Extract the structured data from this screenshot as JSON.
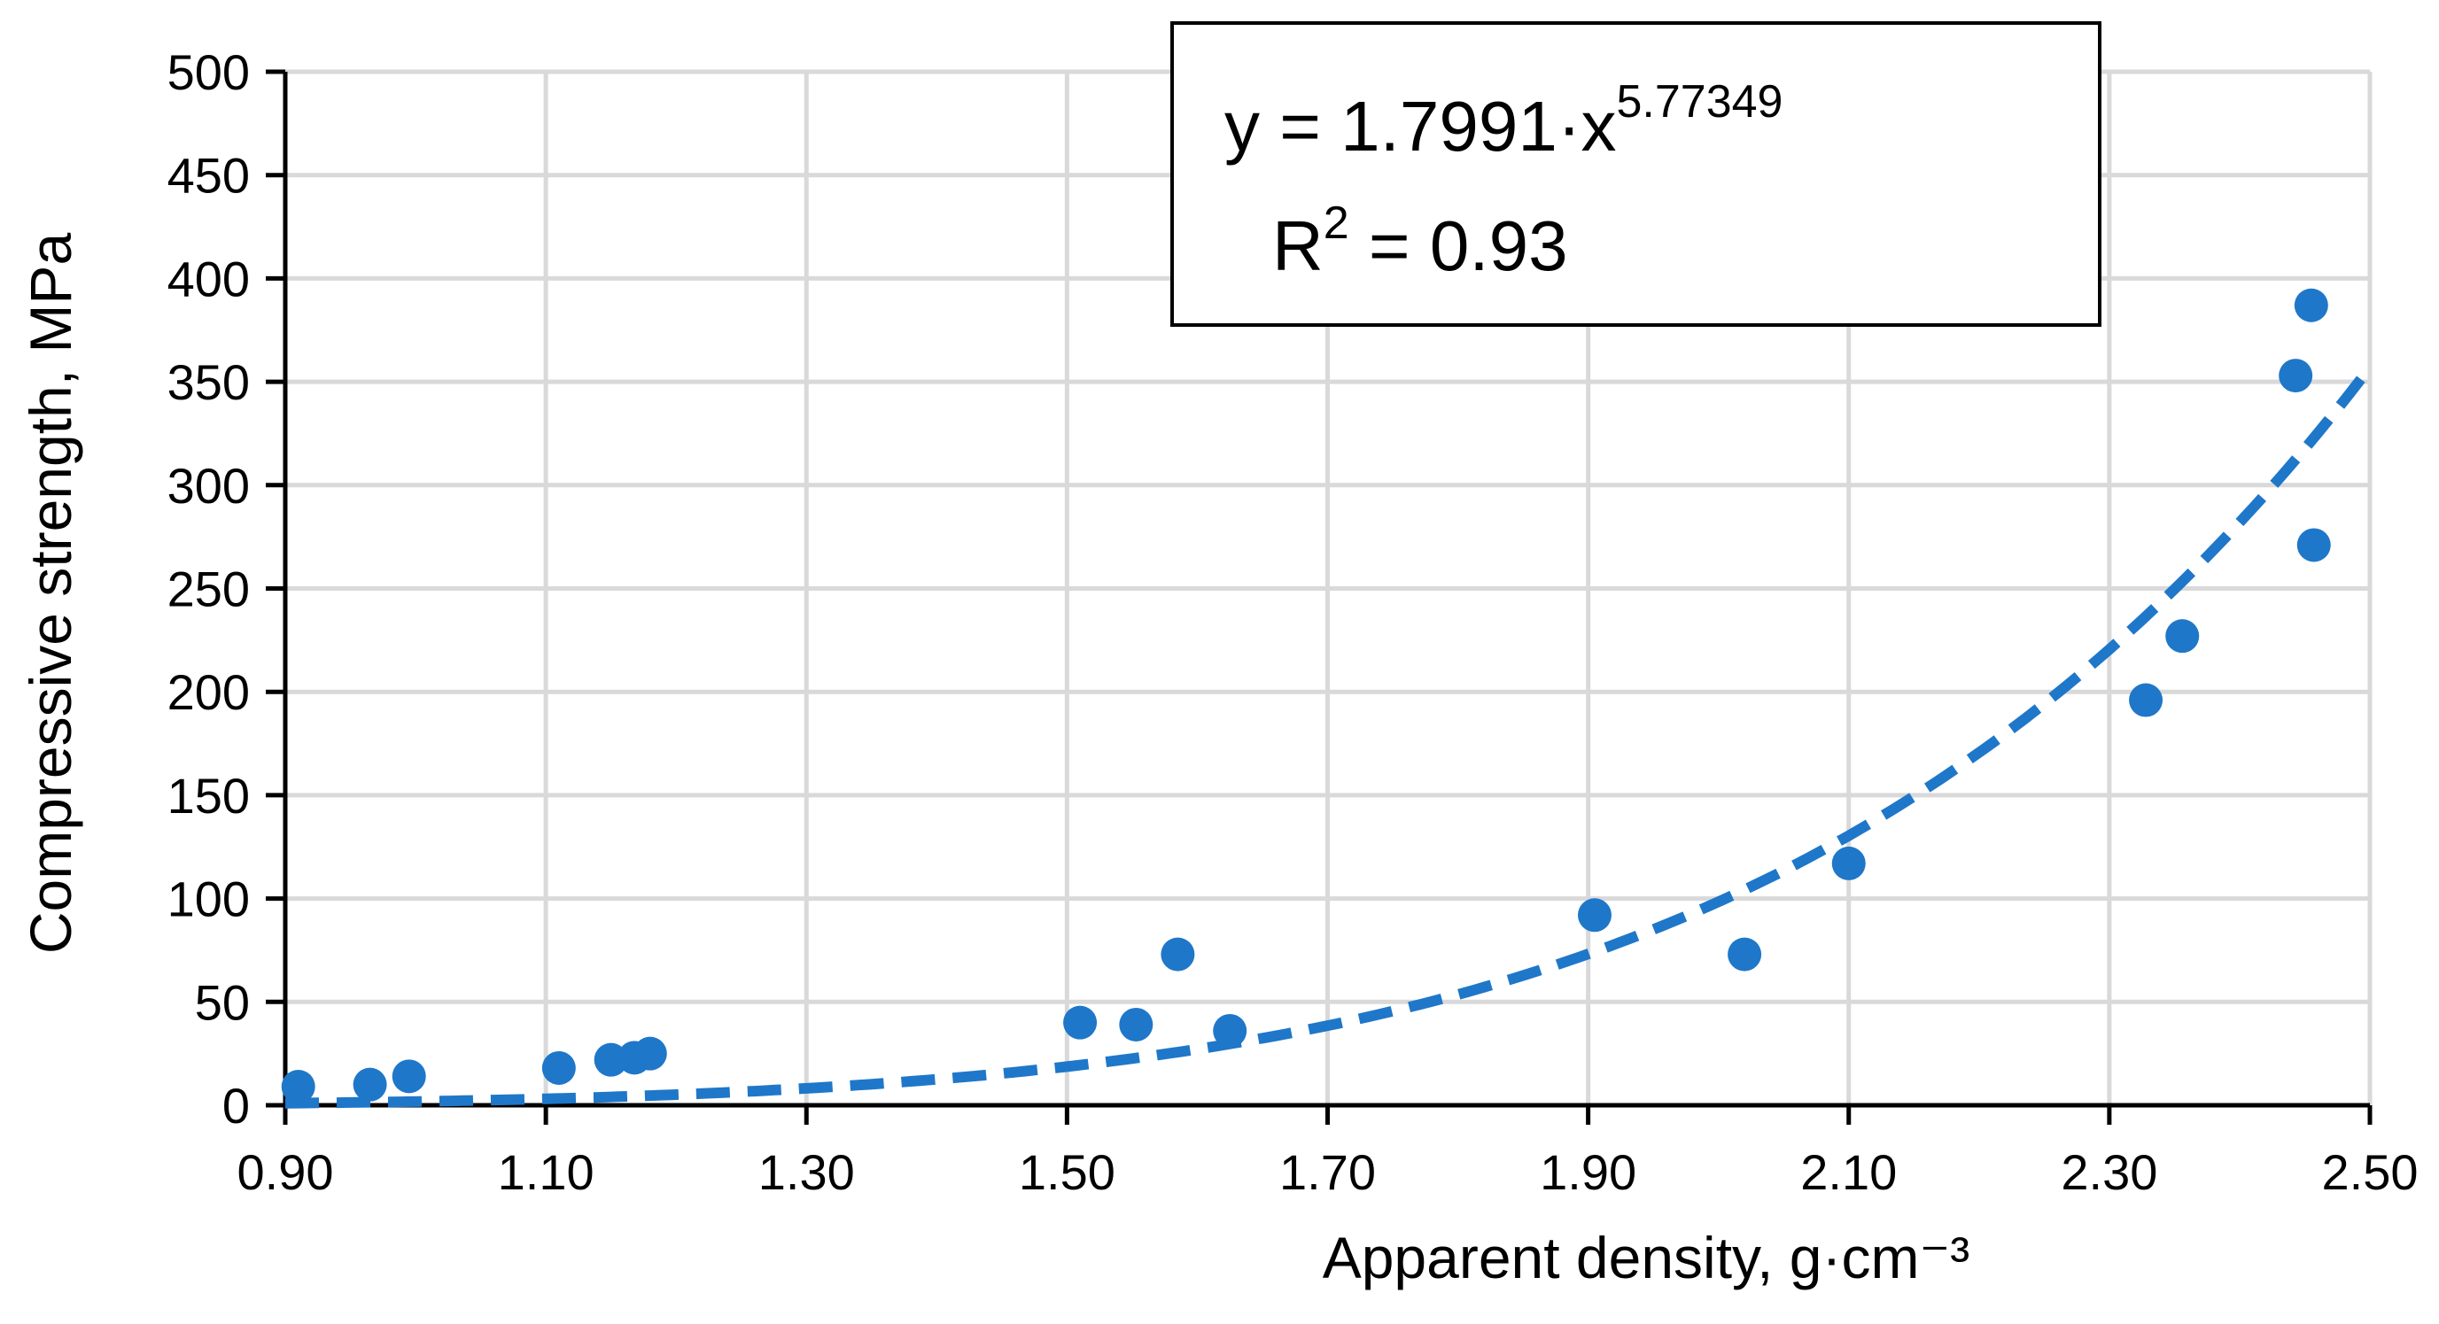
{
  "colors": {
    "series": "#1f77c9",
    "grid": "#d9d9d9",
    "axis": "#000000"
  },
  "chart_data": {
    "type": "scatter",
    "title": "",
    "xlabel": "Apparent density, g·cm⁻³",
    "ylabel": "Compressive strength, MPa",
    "xlim": [
      0.9,
      2.5
    ],
    "ylim": [
      0,
      500
    ],
    "grid": true,
    "x_ticks": [
      "0.90",
      "1.10",
      "1.30",
      "1.50",
      "1.70",
      "1.90",
      "2.10",
      "2.30",
      "2.50"
    ],
    "y_ticks": [
      "0",
      "50",
      "100",
      "150",
      "200",
      "250",
      "300",
      "350",
      "400",
      "450",
      "500"
    ],
    "series": [
      {
        "x": [
          0.91,
          0.965,
          0.995,
          1.11,
          1.15,
          1.168,
          1.18,
          1.51,
          1.553,
          1.585,
          1.625,
          1.905,
          2.02,
          2.1,
          2.328,
          2.356,
          2.443,
          2.455,
          2.457
        ],
        "y": [
          9,
          10,
          14,
          18,
          22,
          23,
          25,
          40,
          39,
          73,
          36,
          92,
          73,
          117,
          196,
          227,
          353,
          387,
          271
        ]
      }
    ],
    "trendline": {
      "type": "power",
      "a": 1.7991,
      "b": 5.77349,
      "equation_prefix": "y = 1.7991·x",
      "equation_exponent": "5.77349",
      "r2_prefix": "R",
      "r2_sup": "2",
      "r2_value": " = 0.93"
    }
  }
}
